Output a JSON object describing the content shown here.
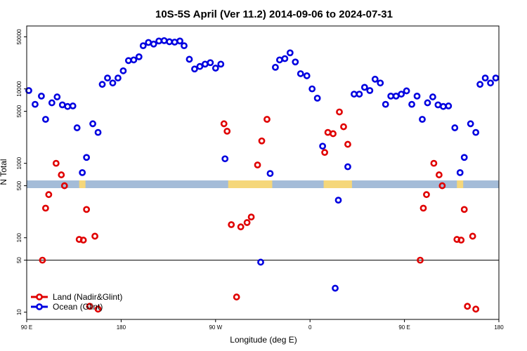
{
  "chart_data": {
    "type": "scatter",
    "title": "10S-5S April (Ver 11.2)   2014-09-06 to 2024-07-31",
    "xlabel": "Longitude (deg E)",
    "ylabel": "N Total",
    "y_scale": "log",
    "ylim": [
      8,
      70000
    ],
    "x_ticks": [
      {
        "value": 90,
        "label": "90 E"
      },
      {
        "value": 180,
        "label": "180"
      },
      {
        "value": 270,
        "label": "90 W"
      },
      {
        "value": 360,
        "label": "0"
      },
      {
        "value": 450,
        "label": "90 E"
      },
      {
        "value": 540,
        "label": "180"
      }
    ],
    "y_ticks": [
      {
        "value": 10,
        "label": "10"
      },
      {
        "value": 50,
        "label": "50"
      },
      {
        "value": 100,
        "label": "100"
      },
      {
        "value": 500,
        "label": "500"
      },
      {
        "value": 1000,
        "label": "1000"
      },
      {
        "value": 5000,
        "label": "5000"
      },
      {
        "value": 10000,
        "label": "10000"
      },
      {
        "value": 50000,
        "label": "50000"
      }
    ],
    "reference_line": 50,
    "land_band": [
      {
        "x0": 90,
        "x1": 540,
        "color": "#a4bcd8"
      },
      {
        "x0": 140,
        "x1": 146,
        "color": "#f5d77a"
      },
      {
        "x0": 282,
        "x1": 324,
        "color": "#f5d77a"
      },
      {
        "x0": 373,
        "x1": 400,
        "color": "#f5d77a"
      },
      {
        "x0": 500,
        "x1": 506,
        "color": "#f5d77a"
      }
    ],
    "legend_position": "bottom-left",
    "series": [
      {
        "name": "Land (Nadir&Glint)",
        "color": "#e00000",
        "points": [
          [
            105,
            50
          ],
          [
            108,
            250
          ],
          [
            111,
            380
          ],
          [
            118,
            1000
          ],
          [
            123,
            700
          ],
          [
            126,
            500
          ],
          [
            140,
            95
          ],
          [
            144,
            93
          ],
          [
            147,
            240
          ],
          [
            150,
            12
          ],
          [
            155,
            105
          ],
          [
            158,
            11
          ],
          [
            278,
            3400
          ],
          [
            281,
            2700
          ],
          [
            285,
            150
          ],
          [
            290,
            16
          ],
          [
            294,
            140
          ],
          [
            300,
            160
          ],
          [
            304,
            190
          ],
          [
            310,
            950
          ],
          [
            314,
            2000
          ],
          [
            319,
            3900
          ],
          [
            374,
            1400
          ],
          [
            377,
            2600
          ],
          [
            382,
            2500
          ],
          [
            388,
            4900
          ],
          [
            392,
            3100
          ],
          [
            396,
            1800
          ],
          [
            465,
            50
          ],
          [
            468,
            250
          ],
          [
            471,
            380
          ],
          [
            478,
            1000
          ],
          [
            483,
            700
          ],
          [
            486,
            500
          ],
          [
            500,
            95
          ],
          [
            504,
            93
          ],
          [
            507,
            240
          ],
          [
            510,
            12
          ],
          [
            515,
            105
          ],
          [
            518,
            11
          ]
        ]
      },
      {
        "name": "Ocean (Glint)",
        "color": "#0000e0",
        "points": [
          [
            92,
            9500
          ],
          [
            98,
            6200
          ],
          [
            104,
            8000
          ],
          [
            108,
            3900
          ],
          [
            114,
            6500
          ],
          [
            119,
            7800
          ],
          [
            124,
            6100
          ],
          [
            129,
            5800
          ],
          [
            134,
            5900
          ],
          [
            138,
            3000
          ],
          [
            143,
            750
          ],
          [
            147,
            1200
          ],
          [
            153,
            3400
          ],
          [
            158,
            2600
          ],
          [
            162,
            11500
          ],
          [
            167,
            14000
          ],
          [
            172,
            12000
          ],
          [
            177,
            14000
          ],
          [
            182,
            17500
          ],
          [
            187,
            24000
          ],
          [
            192,
            24500
          ],
          [
            197,
            27000
          ],
          [
            201,
            38000
          ],
          [
            206,
            42000
          ],
          [
            211,
            40000
          ],
          [
            216,
            44000
          ],
          [
            221,
            44500
          ],
          [
            226,
            43000
          ],
          [
            231,
            42500
          ],
          [
            236,
            44000
          ],
          [
            240,
            38000
          ],
          [
            245,
            25000
          ],
          [
            250,
            18500
          ],
          [
            255,
            20000
          ],
          [
            260,
            21500
          ],
          [
            265,
            22500
          ],
          [
            270,
            19000
          ],
          [
            275,
            21500
          ],
          [
            279,
            1150
          ],
          [
            313,
            47
          ],
          [
            322,
            730
          ],
          [
            327,
            19500
          ],
          [
            331,
            24500
          ],
          [
            336,
            25500
          ],
          [
            341,
            30500
          ],
          [
            346,
            23000
          ],
          [
            351,
            16000
          ],
          [
            357,
            15000
          ],
          [
            362,
            10000
          ],
          [
            367,
            7500
          ],
          [
            372,
            1700
          ],
          [
            384,
            21
          ],
          [
            387,
            320
          ],
          [
            396,
            900
          ],
          [
            402,
            8500
          ],
          [
            407,
            8500
          ],
          [
            412,
            10500
          ],
          [
            417,
            9500
          ],
          [
            422,
            13500
          ],
          [
            427,
            12000
          ],
          [
            432,
            6200
          ],
          [
            437,
            8000
          ],
          [
            442,
            8000
          ],
          [
            447,
            8500
          ],
          [
            452,
            9400
          ],
          [
            457,
            6200
          ],
          [
            462,
            8000
          ],
          [
            467,
            3900
          ],
          [
            472,
            6500
          ],
          [
            477,
            7800
          ],
          [
            482,
            6100
          ],
          [
            487,
            5800
          ],
          [
            492,
            5900
          ],
          [
            498,
            3000
          ],
          [
            503,
            750
          ],
          [
            507,
            1200
          ],
          [
            513,
            3400
          ],
          [
            518,
            2600
          ],
          [
            522,
            11500
          ],
          [
            527,
            14000
          ],
          [
            532,
            12000
          ],
          [
            537,
            14000
          ]
        ]
      }
    ]
  }
}
